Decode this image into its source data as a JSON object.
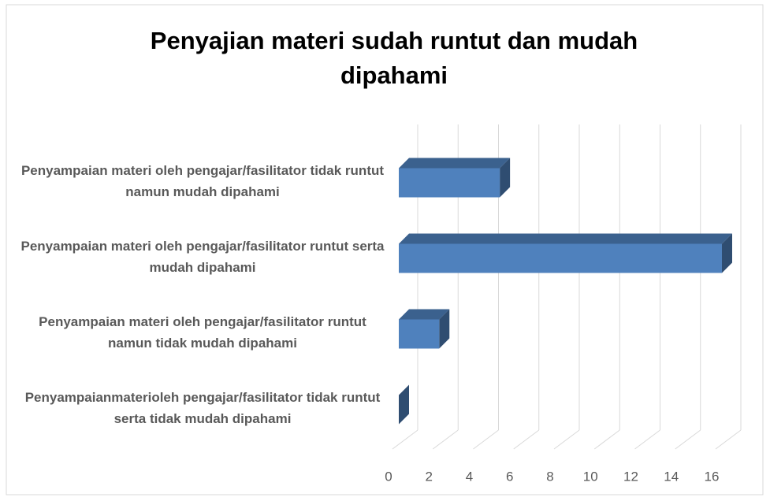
{
  "chart_data": {
    "type": "bar3d_horizontal",
    "title": "Penyajian materi sudah runtut dan mudah dipahami",
    "categories": [
      "Penyampaian materi oleh pengajar/fasilitator tidak runtut namun mudah dipahami",
      "Penyampaian materi oleh pengajar/fasilitator runtut serta mudah dipahami",
      "Penyampaian materi oleh pengajar/fasilitator runtut namun tidak mudah dipahami",
      "Penyampaianmaterioleh pengajar/fasilitator tidak runtut serta tidak mudah dipahami"
    ],
    "values": [
      5,
      16,
      2,
      0
    ],
    "color": "#4f81bd",
    "xlim": [
      0,
      16
    ],
    "xticks": [
      0,
      2,
      4,
      6,
      8,
      10,
      12,
      14,
      16
    ],
    "grid": true
  }
}
